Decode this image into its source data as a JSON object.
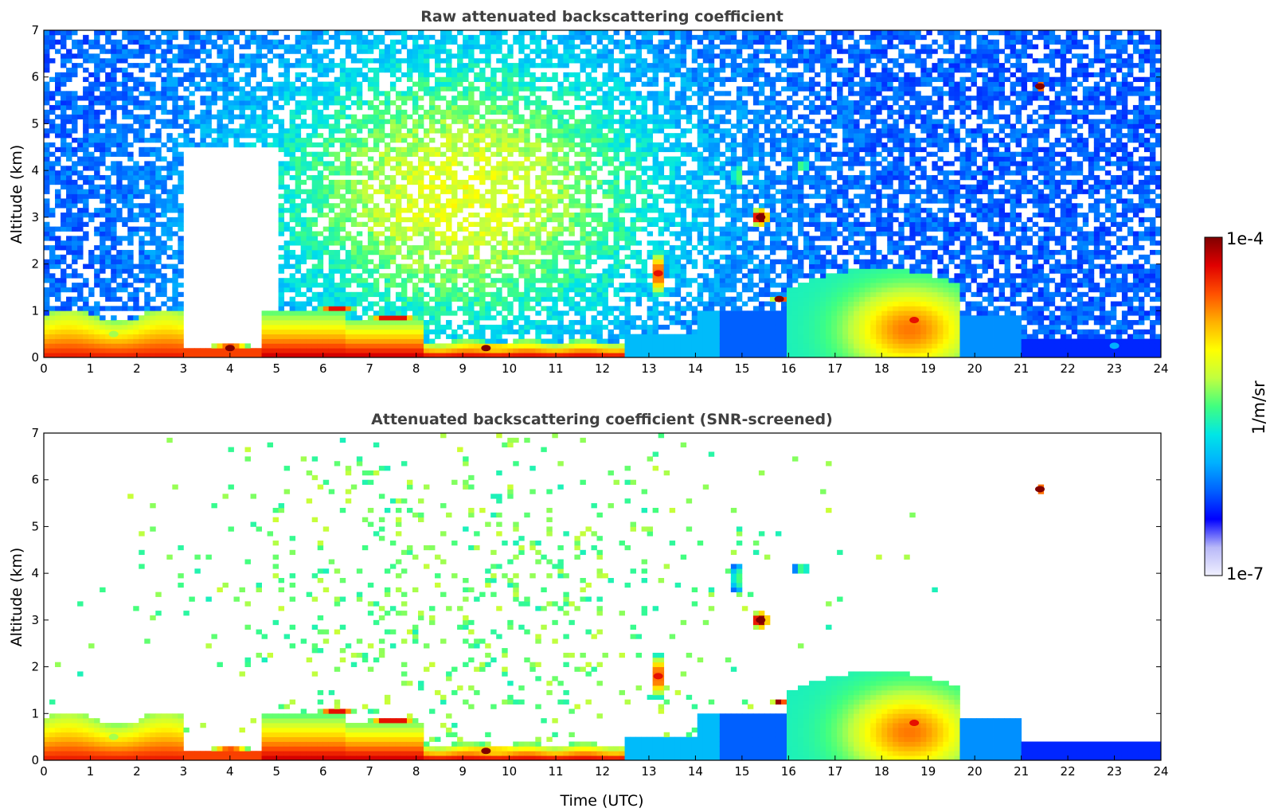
{
  "chart_data": [
    {
      "type": "heatmap",
      "title": "Raw attenuated backscattering coefficient",
      "xlabel": "",
      "ylabel": "Altitude (km)",
      "xlim": [
        0,
        24
      ],
      "ylim": [
        0,
        7
      ],
      "xticks": [
        "0",
        "1",
        "2",
        "3",
        "4",
        "5",
        "6",
        "7",
        "8",
        "9",
        "10",
        "11",
        "12",
        "13",
        "14",
        "15",
        "16",
        "17",
        "18",
        "19",
        "20",
        "21",
        "22",
        "23",
        "24"
      ],
      "yticks": [
        "0",
        "1",
        "2",
        "3",
        "4",
        "5",
        "6",
        "7"
      ],
      "screened": false,
      "features": [
        {
          "t": 1.5,
          "alt": 0.5,
          "value": "5e-6"
        },
        {
          "t": 4.0,
          "alt": 0.2,
          "value": "1e-4"
        },
        {
          "t": 9.5,
          "alt": 0.2,
          "value": "1e-4"
        },
        {
          "t": 13.2,
          "alt": 1.8,
          "value": "5e-5"
        },
        {
          "t": 15.4,
          "alt": 3.0,
          "value": "1e-4"
        },
        {
          "t": 15.8,
          "alt": 1.25,
          "value": "1e-4"
        },
        {
          "t": 18.7,
          "alt": 0.8,
          "value": "5e-5"
        },
        {
          "t": 21.4,
          "alt": 5.8,
          "value": "1e-4"
        },
        {
          "t": 23.0,
          "alt": 0.25,
          "value": "1e-6"
        }
      ]
    },
    {
      "type": "heatmap",
      "title": "Attenuated backscattering coefficient (SNR-screened)",
      "xlabel": "Time (UTC)",
      "ylabel": "Altitude (km)",
      "xlim": [
        0,
        24
      ],
      "ylim": [
        0,
        7
      ],
      "xticks": [
        "0",
        "1",
        "2",
        "3",
        "4",
        "5",
        "6",
        "7",
        "8",
        "9",
        "10",
        "11",
        "12",
        "13",
        "14",
        "15",
        "16",
        "17",
        "18",
        "19",
        "20",
        "21",
        "22",
        "23",
        "24"
      ],
      "yticks": [
        "0",
        "1",
        "2",
        "3",
        "4",
        "5",
        "6",
        "7"
      ],
      "screened": true,
      "features": [
        {
          "t": 1.5,
          "alt": 0.5,
          "value": "5e-6"
        },
        {
          "t": 9.5,
          "alt": 0.2,
          "value": "1e-4"
        },
        {
          "t": 13.2,
          "alt": 1.8,
          "value": "5e-5"
        },
        {
          "t": 15.4,
          "alt": 3.0,
          "value": "1e-4"
        },
        {
          "t": 18.7,
          "alt": 0.8,
          "value": "5e-5"
        },
        {
          "t": 21.4,
          "alt": 5.8,
          "value": "1e-4"
        }
      ]
    }
  ],
  "colorbar": {
    "label": "1/m/sr",
    "max_label": "1e-4",
    "min_label": "1e-7",
    "scale": "log",
    "colors": [
      "#f0f0ff",
      "#b8b8f8",
      "#0000ff",
      "#0060ff",
      "#00b0ff",
      "#00e6e6",
      "#40ff80",
      "#c0ff40",
      "#ffff00",
      "#ffb000",
      "#ff5000",
      "#e00000",
      "#800000"
    ]
  }
}
